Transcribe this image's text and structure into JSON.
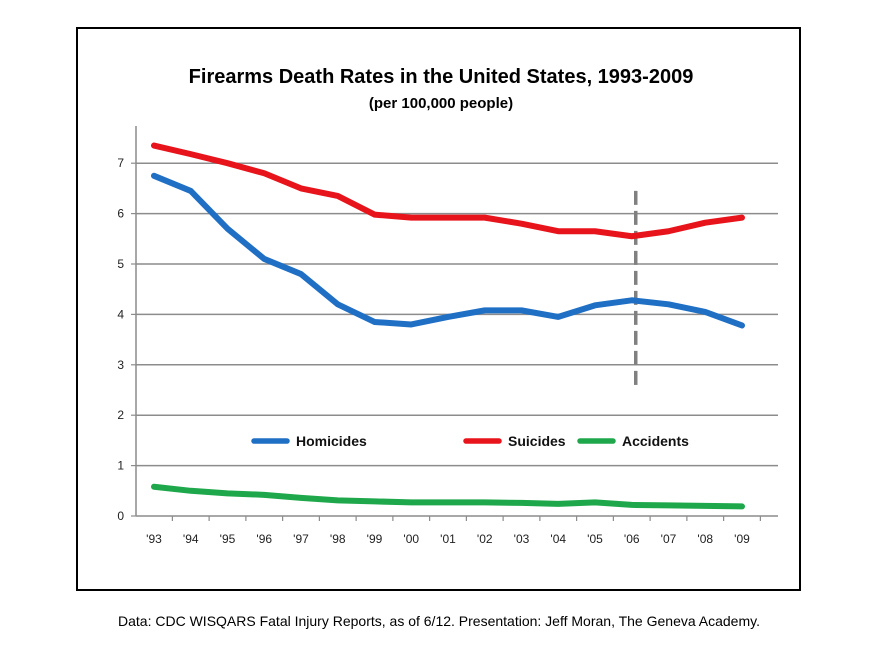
{
  "chart_data": {
    "type": "line",
    "title": "Firearms Death Rates in the United States, 1993-2009",
    "subtitle": "(per 100,000 people)",
    "xlabel": "",
    "ylabel": "",
    "categories": [
      "'93",
      "'94",
      "'95",
      "'96",
      "'97",
      "'98",
      "'99",
      "'00",
      "'01",
      "'02",
      "'03",
      "'04",
      "'05",
      "'06",
      "'07",
      "'08",
      "'09"
    ],
    "ylim": [
      0,
      7.5
    ],
    "yticks": [
      0,
      1,
      2,
      3,
      4,
      5,
      6,
      7
    ],
    "grid": true,
    "legend_position": "center",
    "series": [
      {
        "name": "Homicides",
        "color": "#1f6fc5",
        "values": [
          6.75,
          6.45,
          5.7,
          5.1,
          4.8,
          4.2,
          3.85,
          3.8,
          3.95,
          4.08,
          4.08,
          3.95,
          4.18,
          4.28,
          4.2,
          4.05,
          3.78
        ]
      },
      {
        "name": "Suicides",
        "color": "#e8141b",
        "values": [
          7.35,
          7.18,
          7.0,
          6.8,
          6.5,
          6.35,
          5.98,
          5.92,
          5.92,
          5.92,
          5.8,
          5.65,
          5.65,
          5.55,
          5.65,
          5.82,
          5.92
        ]
      },
      {
        "name": "Accidents",
        "color": "#1ea84b",
        "values": [
          0.58,
          0.5,
          0.45,
          0.42,
          0.36,
          0.31,
          0.29,
          0.27,
          0.27,
          0.27,
          0.26,
          0.24,
          0.27,
          0.22,
          0.21,
          0.2,
          0.19
        ]
      }
    ],
    "annotations": [
      {
        "type": "vertical-dashed-line",
        "at": "'06",
        "from": 2.5,
        "to": 6.45,
        "color": "#808080"
      }
    ]
  },
  "footer": {
    "source": "Data: CDC WISQARS Fatal Injury Reports, as of 6/12.  Presentation: Jeff Moran, The Geneva Academy."
  }
}
